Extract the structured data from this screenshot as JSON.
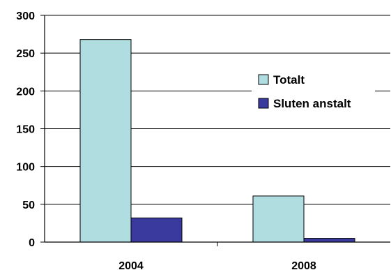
{
  "chart_data": {
    "type": "bar",
    "title": "",
    "xlabel": "",
    "ylabel": "",
    "categories": [
      "2004",
      "2008"
    ],
    "series": [
      {
        "name": "Totalt",
        "values": [
          268,
          61
        ],
        "color": "#b0dde0"
      },
      {
        "name": "Sluten anstalt",
        "values": [
          32,
          5
        ],
        "color": "#3a3a9e"
      }
    ],
    "ylim": [
      0,
      300
    ],
    "yticks": [
      "0",
      "50",
      "100",
      "150",
      "200",
      "250",
      "300"
    ],
    "grid": true,
    "legend_position": "right"
  }
}
